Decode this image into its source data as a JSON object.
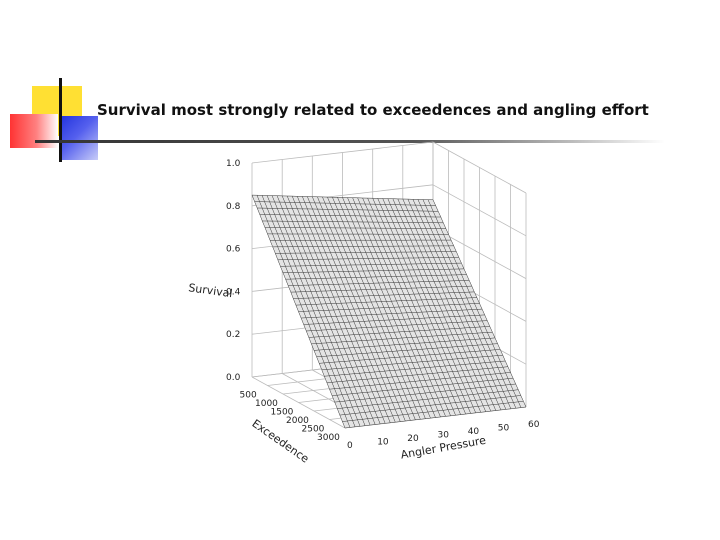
{
  "slide": {
    "title": "Survival most strongly related to exceedences and angling effort"
  },
  "colors": {
    "accent_yellow": "#ffe033",
    "accent_red": "#ff3333",
    "accent_blue": "#2233dd",
    "grid": "#bbbbbb",
    "mesh": "#333333"
  },
  "chart_data": {
    "type": "surface",
    "title": "",
    "zlabel": "Survival",
    "xlabel": "Exceedence",
    "ylabel": "Angler Pressure",
    "zlim": [
      0,
      1
    ],
    "xlim": [
      0,
      3000
    ],
    "ylim": [
      0,
      60
    ],
    "z_ticks": [
      "0.0",
      "0.2",
      "0.4",
      "0.6",
      "0.8",
      "1.0"
    ],
    "x_ticks": [
      "500",
      "1000",
      "1500",
      "2000",
      "2500",
      "3000"
    ],
    "y_ticks": [
      "0",
      "10",
      "20",
      "30",
      "40",
      "50",
      "60"
    ],
    "grid": true,
    "corner_values": [
      {
        "exceedence": 0,
        "angler_pressure": 0,
        "survival": 0.85
      },
      {
        "exceedence": 0,
        "angler_pressure": 60,
        "survival": 0.73
      },
      {
        "exceedence": 3000,
        "angler_pressure": 0,
        "survival": 0.0
      },
      {
        "exceedence": 3000,
        "angler_pressure": 60,
        "survival": 0.0
      }
    ]
  }
}
